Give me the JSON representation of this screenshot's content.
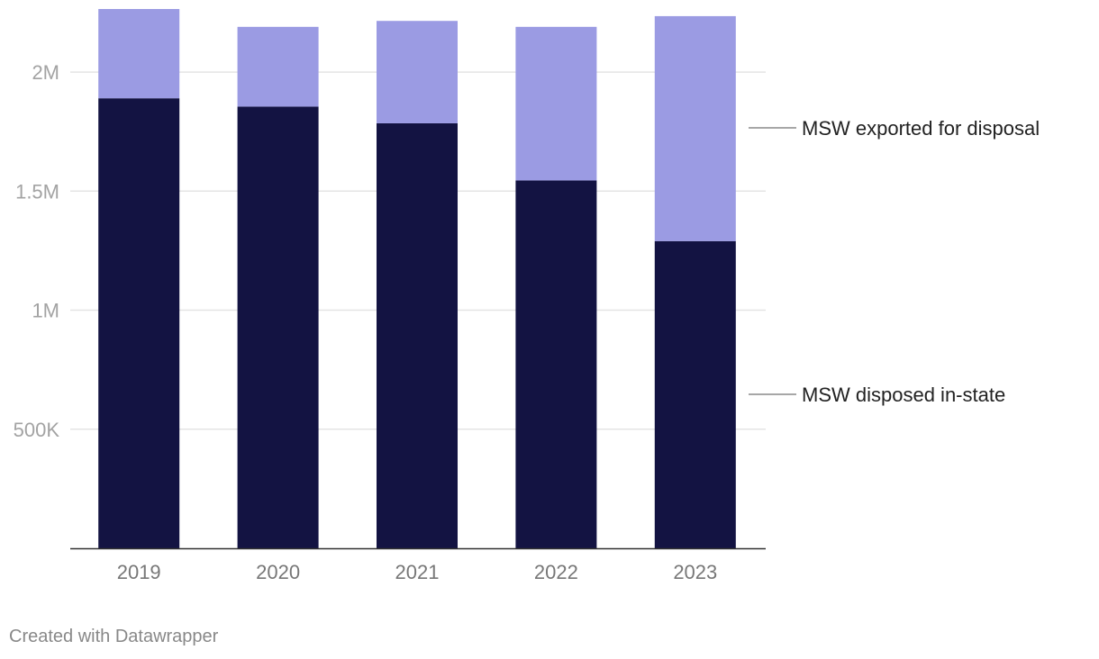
{
  "chart_data": {
    "type": "bar",
    "stacked": true,
    "title": "",
    "xlabel": "",
    "ylabel": "",
    "categories": [
      "2019",
      "2020",
      "2021",
      "2022",
      "2023"
    ],
    "series": [
      {
        "name": "MSW disposed in-state",
        "color": "#131342",
        "values": [
          1890000,
          1855000,
          1785000,
          1545000,
          1290000
        ]
      },
      {
        "name": "MSW exported for disposal",
        "color": "#9b9be3",
        "values": [
          375000,
          335000,
          430000,
          645000,
          945000
        ]
      }
    ],
    "ylim": [
      0,
      2265000
    ],
    "yticks": [
      {
        "value": 500000,
        "label": "500K"
      },
      {
        "value": 1000000,
        "label": "1M"
      },
      {
        "value": 1500000,
        "label": "1.5M"
      },
      {
        "value": 2000000,
        "label": "2M"
      }
    ],
    "grid": true,
    "legend_placement": "right, inline labels"
  },
  "credit": "Created with Datawrapper"
}
